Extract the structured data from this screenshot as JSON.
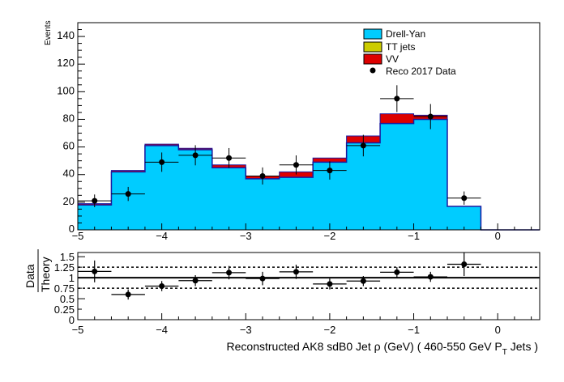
{
  "chart_data": [
    {
      "type": "stacked-histogram",
      "ylabel": "Events",
      "xlim": [
        -5,
        0.5
      ],
      "ylim": [
        0,
        150
      ],
      "y_ticks": [
        0,
        20,
        40,
        60,
        80,
        100,
        120,
        140
      ],
      "x_ticks": [
        -5,
        -4,
        -3,
        -2,
        -1,
        0
      ],
      "x_tick_labels": [
        "−5",
        "−4",
        "−3",
        "−2",
        "−1",
        "0"
      ],
      "bin_edges": [
        -5.0,
        -4.6,
        -4.2,
        -3.8,
        -3.4,
        -3.0,
        -2.6,
        -2.2,
        -1.8,
        -1.4,
        -1.0,
        -0.6,
        -0.2,
        0.2,
        0.5
      ],
      "series": [
        {
          "name": "Drell-Yan",
          "color": "#00ccff",
          "values": [
            18,
            42,
            61,
            58,
            45,
            37,
            38,
            49,
            63,
            77,
            80,
            17,
            0,
            0
          ]
        },
        {
          "name": "TT jets",
          "color": "#cccc00",
          "values": [
            0,
            0,
            0,
            0,
            0,
            0,
            0,
            0,
            0,
            0,
            0,
            0,
            0,
            0
          ]
        },
        {
          "name": "VV",
          "color": "#dd0000",
          "values": [
            1,
            1,
            1,
            1,
            2,
            2,
            4,
            3,
            5,
            7,
            3,
            0,
            0,
            0
          ]
        }
      ],
      "data": {
        "name": "Reco 2017 Data",
        "x": [
          -4.8,
          -4.4,
          -4.0,
          -3.6,
          -3.2,
          -2.8,
          -2.4,
          -2.0,
          -1.6,
          -1.2,
          -0.8,
          -0.4
        ],
        "y": [
          21,
          26,
          49,
          54,
          52,
          39,
          47,
          43,
          61,
          95,
          82,
          23
        ],
        "yerr": [
          4.6,
          5.1,
          7.0,
          7.3,
          7.2,
          6.2,
          6.9,
          6.6,
          7.8,
          9.7,
          9.1,
          4.8
        ]
      },
      "legend_position": "top-right"
    },
    {
      "type": "ratio",
      "ylabel_num": "Data",
      "ylabel_den": "Theory",
      "xlabel_main": "Reconstructed AK8 sdB0 Jet ρ (GeV) ( 460-550 GeV P",
      "xlabel_sub": "T",
      "xlabel_end": " Jets  )",
      "xlim": [
        -5,
        0.5
      ],
      "ylim": [
        0,
        1.6
      ],
      "y_ticks": [
        0,
        0.25,
        0.5,
        0.75,
        1,
        1.25,
        1.5
      ],
      "y_tick_labels": [
        "0",
        "0.25",
        "0.5",
        "0.75",
        "1",
        "1.25",
        "1.5"
      ],
      "x_ticks": [
        -5,
        -4,
        -3,
        -2,
        -1,
        0
      ],
      "x_tick_labels": [
        "−5",
        "−4",
        "−3",
        "−2",
        "−1",
        "0"
      ],
      "reference_lines": [
        0.75,
        1.25
      ],
      "unity_line": 1,
      "x": [
        -4.8,
        -4.4,
        -4.0,
        -3.6,
        -3.2,
        -2.8,
        -2.4,
        -2.0,
        -1.6,
        -1.2,
        -0.8,
        -0.4
      ],
      "y": [
        1.15,
        0.6,
        0.8,
        0.93,
        1.12,
        0.98,
        1.14,
        0.85,
        0.92,
        1.13,
        1.02,
        1.32
      ],
      "yerr": [
        0.26,
        0.12,
        0.12,
        0.13,
        0.16,
        0.16,
        0.17,
        0.13,
        0.12,
        0.12,
        0.12,
        0.28
      ]
    }
  ]
}
